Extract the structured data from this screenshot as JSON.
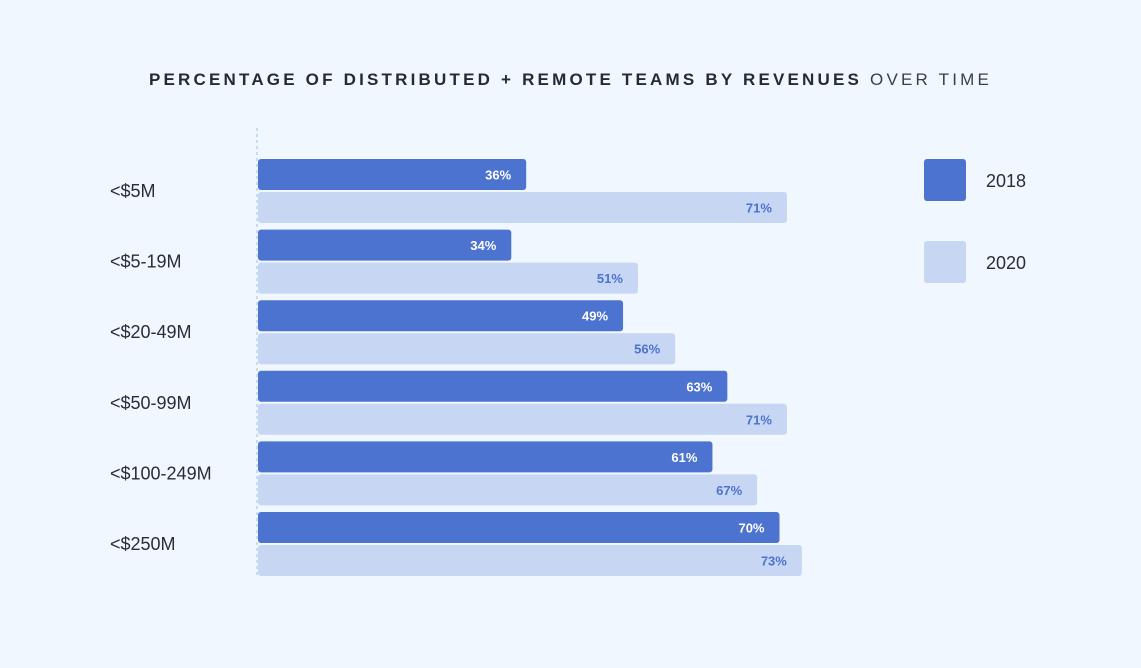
{
  "chart_data": {
    "type": "bar",
    "orientation": "horizontal",
    "title_bold": "PERCENTAGE OF DISTRIBUTED + REMOTE TEAMS BY REVENUES",
    "title_light": "OVER TIME",
    "categories": [
      "<$5M",
      "<$5-19M",
      "<$20-49M",
      "<$50-99M",
      "<$100-249M",
      "<$250M"
    ],
    "series": [
      {
        "name": "2018",
        "color": "#4c73cf",
        "label_color": "#ffffff",
        "values": [
          36,
          34,
          49,
          63,
          61,
          70
        ],
        "value_labels": [
          "36%",
          "34%",
          "49%",
          "63%",
          "61%",
          "70%"
        ]
      },
      {
        "name": "2020",
        "color": "#c7d6f2",
        "label_color": "#4c73cf",
        "values": [
          71,
          51,
          56,
          71,
          67,
          73
        ],
        "value_labels": [
          "71%",
          "51%",
          "56%",
          "71%",
          "67%",
          "73%"
        ]
      }
    ],
    "xlim": [
      0,
      100
    ],
    "grid": false,
    "legend_position": "top-right",
    "xlabel": "",
    "ylabel": ""
  }
}
